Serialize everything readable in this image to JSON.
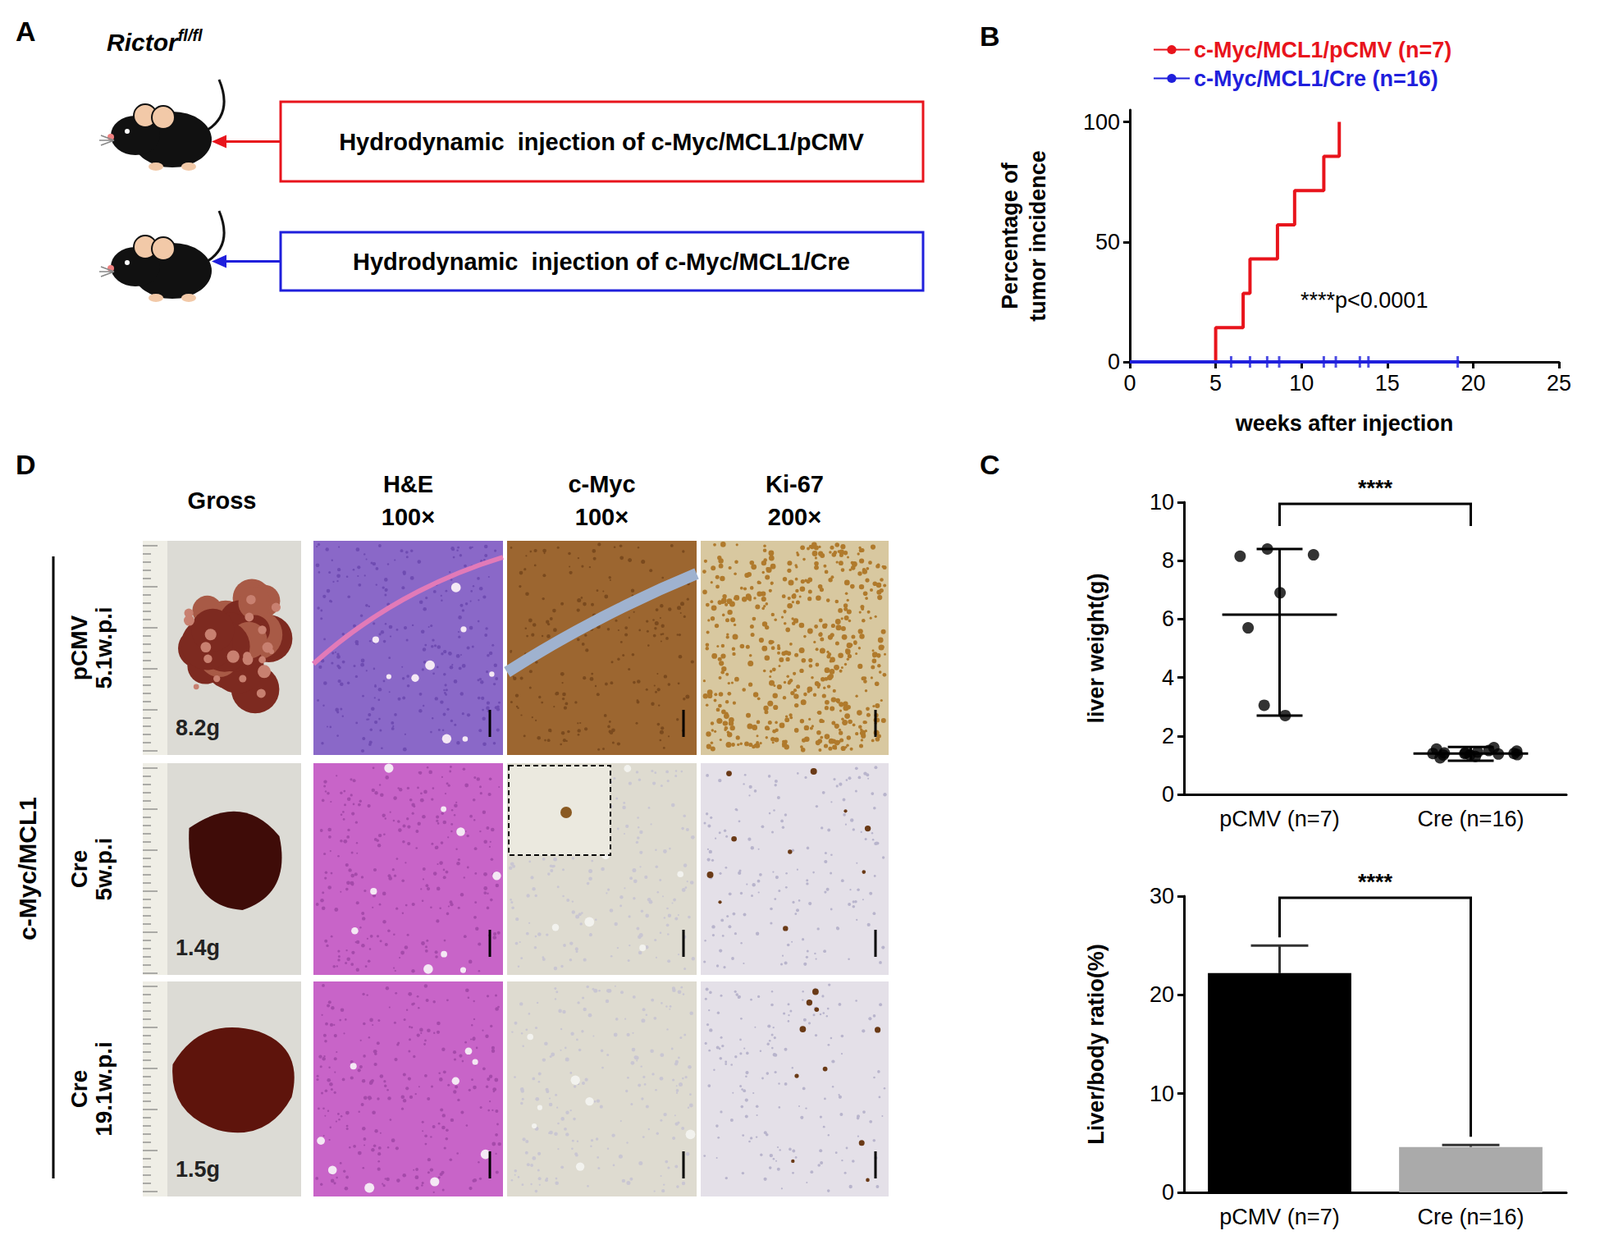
{
  "panel_A": {
    "label": "A",
    "strain": "Rictor",
    "strain_superscript": "fl/fl",
    "injections": [
      {
        "text": "Hydrodynamic  injection of c-Myc/MCL1/pCMV",
        "color": "#e8141c"
      },
      {
        "text": "Hydrodynamic  injection of c-Myc/MCL1/Cre",
        "color": "#1f1fdc"
      }
    ]
  },
  "panel_D": {
    "label": "D",
    "group_label": "c-Myc/MCL1",
    "columns": [
      {
        "title": "Gross"
      },
      {
        "title": "H&E",
        "magnification": "100×"
      },
      {
        "title": "c-Myc",
        "magnification": "100×"
      },
      {
        "title": "Ki-67",
        "magnification": "200×"
      }
    ],
    "rows": [
      {
        "group": "pCMV",
        "time": "5.1w.p.i",
        "liver_weight": "8.2g"
      },
      {
        "group": "Cre",
        "time": "5w.p.i",
        "liver_weight": "1.4g"
      },
      {
        "group": "Cre",
        "time": "19.1w.p.i",
        "liver_weight": "1.5g"
      }
    ]
  },
  "chart_data": [
    {
      "panel": "B",
      "type": "line",
      "xlabel": "weeks after injection",
      "ylabel": "Percentage of\ntumor incidence",
      "xlim": [
        0,
        25
      ],
      "xticks": [
        0,
        5,
        10,
        15,
        20,
        25
      ],
      "ylim": [
        0,
        105
      ],
      "yticks": [
        0,
        50,
        100
      ],
      "grid": false,
      "legend": "upper left",
      "annotation": "****p<0.0001",
      "series": [
        {
          "name": "c-Myc/MCL1/pCMV (n=7)",
          "color": "#e8141c",
          "line_style": "step",
          "x": [
            0,
            5,
            6.6,
            7,
            8.6,
            9.6,
            11.3,
            12.2
          ],
          "values": [
            0,
            14.3,
            28.6,
            42.9,
            57.1,
            71.4,
            85.7,
            100
          ]
        },
        {
          "name": "c-Myc/MCL1/Cre (n=16)",
          "color": "#1f1fdc",
          "line_style": "step",
          "marker": "tick",
          "x": [
            0,
            19.2
          ],
          "values": [
            0,
            0
          ],
          "censored": [
            5.9,
            7,
            8,
            8.7,
            11.3,
            12,
            13.4,
            13.9,
            19.1
          ]
        }
      ]
    },
    {
      "panel": "C",
      "type": "scatter",
      "ylabel": "liver weight(g)",
      "categories": [
        "pCMV (n=7)",
        "Cre (n=16)"
      ],
      "ylim": [
        0,
        10
      ],
      "yticks": [
        0,
        2,
        4,
        6,
        8,
        10
      ],
      "grid": false,
      "color": "#000000",
      "marker": "circle",
      "significance": "****",
      "groups": [
        {
          "values": [
            8.2,
            8.4,
            8.15,
            6.9,
            5.7,
            3.05,
            2.7
          ],
          "mean": 6.15,
          "whisker_low": 2.7,
          "whisker_high": 8.4
        },
        {
          "values": [
            1.4,
            1.35,
            1.38,
            1.42,
            1.3,
            1.45,
            1.5,
            1.4,
            1.36,
            1.42,
            1.25,
            1.6,
            1.48,
            1.35,
            1.4,
            1.55
          ],
          "mean": 1.4,
          "whisker_low": 1.15,
          "whisker_high": 1.62
        }
      ]
    },
    {
      "type": "bar",
      "ylabel": "Liver/body ratio(%)",
      "categories": [
        "pCMV (n=7)",
        "Cre (n=16)"
      ],
      "values": [
        22.2,
        4.6
      ],
      "errors": [
        2.8,
        0.2
      ],
      "colors": [
        "#000000",
        "#aaaaaa"
      ],
      "ylim": [
        0,
        30
      ],
      "yticks": [
        0,
        10,
        20,
        30
      ],
      "grid": false,
      "significance": "****"
    }
  ]
}
